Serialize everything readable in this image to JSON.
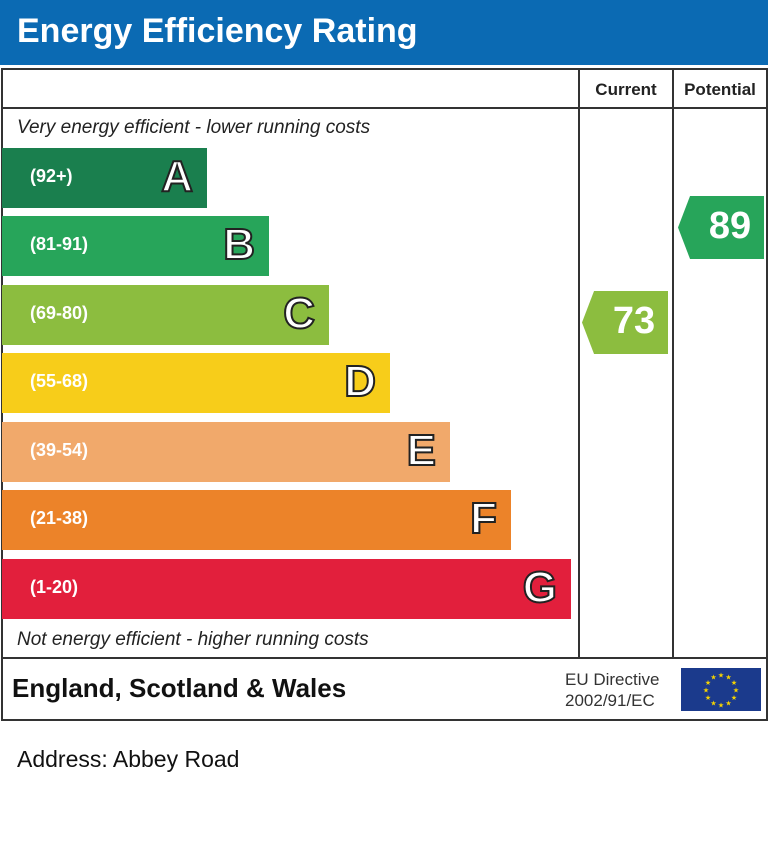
{
  "header": {
    "title": "Energy Efficiency Rating"
  },
  "columns": {
    "current": "Current",
    "potential": "Potential"
  },
  "notes": {
    "top": "Very energy efficient - lower running costs",
    "bottom": "Not energy efficient - higher running costs"
  },
  "footer": {
    "region": "England, Scotland & Wales",
    "directive_line1": "EU Directive",
    "directive_line2": "2002/91/EC",
    "flag_icon": "eu-flag-icon"
  },
  "address": "Address: Abbey Road",
  "chart_data": {
    "type": "bar",
    "title": "Energy Efficiency Rating",
    "categories": [
      "A",
      "B",
      "C",
      "D",
      "E",
      "F",
      "G"
    ],
    "ranges": [
      "(92+)",
      "(81-91)",
      "(69-80)",
      "(55-68)",
      "(39-54)",
      "(21-38)",
      "(1-20)"
    ],
    "colors": [
      "#1a7f4e",
      "#27a55a",
      "#8cbd3f",
      "#f7cd1a",
      "#f1a96b",
      "#ec8329",
      "#e21f3c"
    ],
    "current": {
      "value": 73,
      "band": "C",
      "color": "#8cbd3f"
    },
    "potential": {
      "value": 89,
      "band": "B",
      "color": "#27a55a"
    }
  }
}
